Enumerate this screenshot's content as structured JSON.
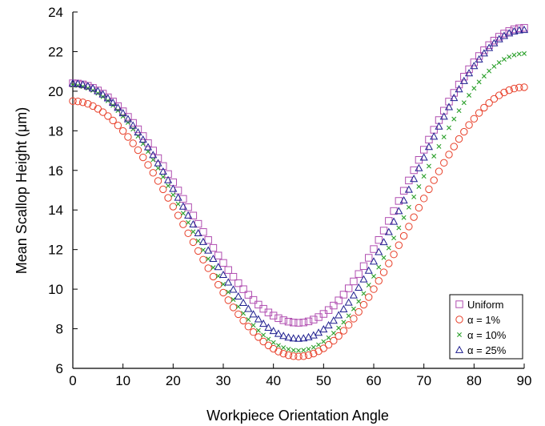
{
  "chart_data": {
    "type": "scatter",
    "title": "",
    "xlabel": "Workpiece Orientation Angle",
    "ylabel": "Mean Scallop Height (μm)",
    "xlim": [
      0,
      90
    ],
    "ylim": [
      6,
      24
    ],
    "x_ticks": [
      "0",
      "10",
      "20",
      "30",
      "40",
      "50",
      "60",
      "70",
      "80",
      "90"
    ],
    "y_ticks": [
      "6",
      "8",
      "10",
      "12",
      "14",
      "16",
      "18",
      "20",
      "22",
      "24"
    ],
    "grid": false,
    "legend_position": "bottom-right",
    "series": [
      {
        "name": "Uniform",
        "marker": "square",
        "color": "#b04db0",
        "min_x": 45,
        "min_y": 8.3,
        "start_y": 20.4,
        "end_y": 23.2
      },
      {
        "name": "α = 1%",
        "marker": "circle",
        "color": "#e8402a",
        "min_x": 45,
        "min_y": 6.6,
        "start_y": 19.5,
        "end_y": 20.2
      },
      {
        "name": "α = 10%",
        "marker": "x",
        "color": "#2aa02a",
        "min_x": 45,
        "min_y": 6.9,
        "start_y": 20.3,
        "end_y": 21.9
      },
      {
        "name": "α = 25%",
        "marker": "triangle",
        "color": "#1f1f8f",
        "min_x": 45,
        "min_y": 7.5,
        "start_y": 20.4,
        "end_y": 23.1
      }
    ]
  }
}
